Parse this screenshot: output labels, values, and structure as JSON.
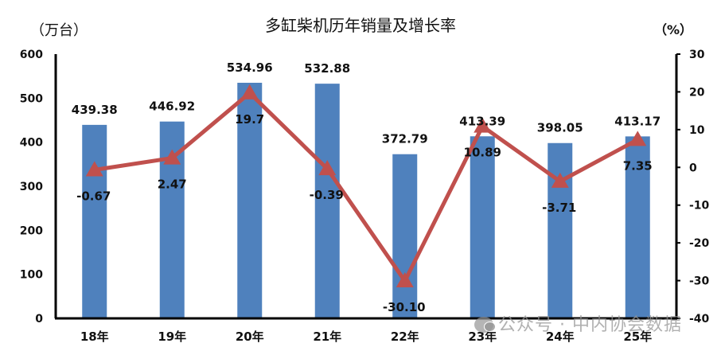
{
  "chart_data": {
    "type": "bar+line",
    "title": "多缸柴机历年销量及增长率",
    "categories": [
      "18年",
      "19年",
      "20年",
      "21年",
      "22年",
      "23年",
      "24年",
      "25年"
    ],
    "series": [
      {
        "name": "销量",
        "type": "bar",
        "axis": "left",
        "unit": "万台",
        "color": "#4F81BD",
        "values": [
          439.38,
          446.92,
          534.96,
          532.88,
          372.79,
          413.39,
          398.05,
          413.17
        ],
        "labels": [
          "439.38",
          "446.92",
          "534.96",
          "532.88",
          "372.79",
          "413.39",
          "398.05",
          "413.17"
        ]
      },
      {
        "name": "增长率",
        "type": "line",
        "axis": "right",
        "unit": "%",
        "color": "#C0504D",
        "marker": "triangle",
        "values": [
          -0.67,
          2.47,
          19.7,
          -0.39,
          -30.1,
          10.89,
          -3.71,
          7.35
        ],
        "labels": [
          "-0.67",
          "2.47",
          "19.7",
          "-0.39",
          "-30.10",
          "10.89",
          "-3.71",
          "7.35"
        ]
      }
    ],
    "ylabel_left": "（万台）",
    "ylabel_right": "（%）",
    "ylim_left": [
      0,
      600
    ],
    "yticks_left": [
      0,
      100,
      200,
      300,
      400,
      500,
      600
    ],
    "ylim_right": [
      -40,
      30
    ],
    "yticks_right": [
      30,
      20,
      10,
      0,
      -10,
      -20,
      -30,
      -40
    ],
    "grid": false,
    "legend": "none"
  },
  "watermark": {
    "text": "公众号 · 中内协会数据",
    "icon": "wechat-icon"
  }
}
